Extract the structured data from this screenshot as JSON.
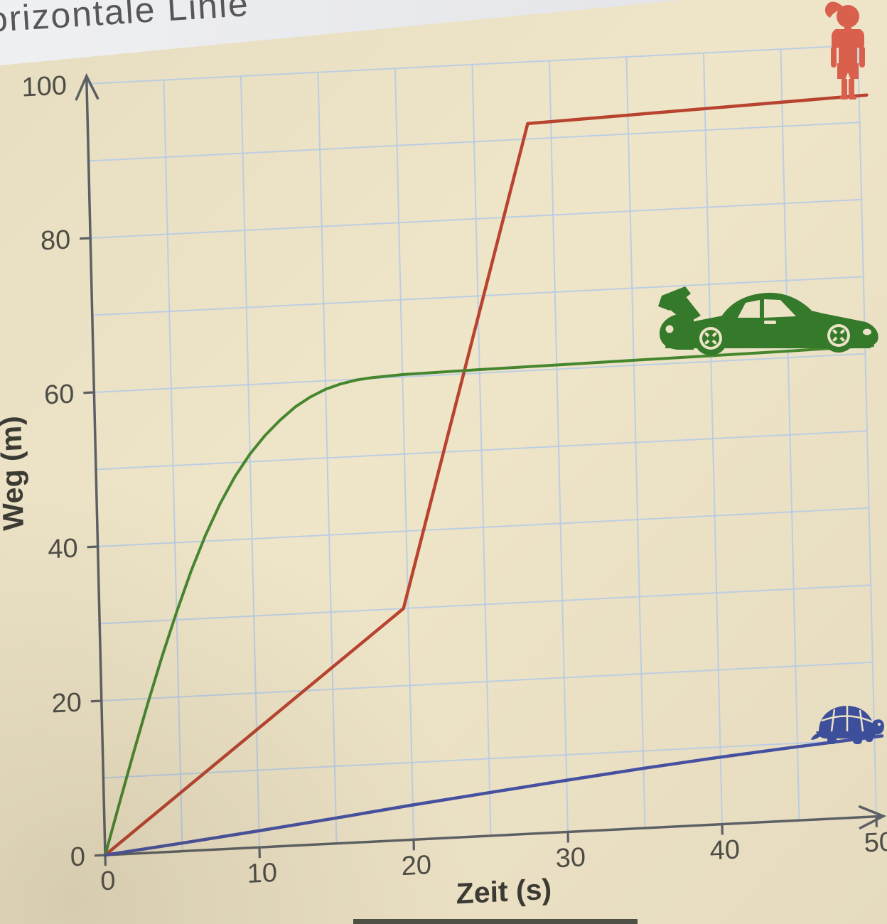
{
  "page": {
    "top_partial_text": "orizontale Linie",
    "paper_color": "#ece2c6",
    "top_band_color": "#e9eaec"
  },
  "chart_data": {
    "type": "line",
    "title": "",
    "xlabel": "Zeit (s)",
    "ylabel": "Weg (m)",
    "xlim": [
      0,
      50
    ],
    "ylim": [
      0,
      100
    ],
    "x_ticks": [
      0,
      10,
      20,
      30,
      40,
      50
    ],
    "y_ticks": [
      0,
      20,
      40,
      60,
      80,
      100
    ],
    "x_grid_step": 5,
    "y_grid_step": 10,
    "grid": true,
    "grid_color": "#b4cbe7",
    "axis_color": "#5c6064",
    "legend_position": "none",
    "series": [
      {
        "name": "runner-girl",
        "icon": "girl-runner-icon",
        "color": "#b8432f",
        "stroke_width": 4.5,
        "points": [
          [
            0,
            0
          ],
          [
            19.7,
            30
          ],
          [
            28.5,
            92
          ],
          [
            50.5,
            93.5
          ]
        ]
      },
      {
        "name": "sports-car",
        "icon": "sports-car-icon",
        "color": "#45862f",
        "stroke_width": 4,
        "points": [
          [
            0,
            0
          ],
          [
            1,
            6.6
          ],
          [
            2,
            13.1
          ],
          [
            3,
            19.4
          ],
          [
            4,
            25.4
          ],
          [
            5,
            31
          ],
          [
            6,
            36.2
          ],
          [
            7,
            40.8
          ],
          [
            8,
            44.8
          ],
          [
            9,
            48.2
          ],
          [
            10,
            51
          ],
          [
            11,
            53.3
          ],
          [
            12,
            55.2
          ],
          [
            13,
            56.8
          ],
          [
            14,
            58
          ],
          [
            15,
            58.9
          ],
          [
            16,
            59.5
          ],
          [
            17,
            59.9
          ],
          [
            18,
            60.1
          ],
          [
            20,
            60.3
          ],
          [
            25,
            60.45
          ],
          [
            30,
            60.55
          ],
          [
            35,
            60.65
          ],
          [
            40,
            60.75
          ],
          [
            45,
            60.85
          ],
          [
            50.5,
            61
          ]
        ]
      },
      {
        "name": "turtle",
        "icon": "turtle-icon",
        "color": "#4550a0",
        "stroke_width": 4.5,
        "points": [
          [
            0,
            0
          ],
          [
            5,
            1.05
          ],
          [
            10,
            2.15
          ],
          [
            15,
            3.3
          ],
          [
            20,
            4.5
          ],
          [
            25,
            5.6
          ],
          [
            30,
            6.7
          ],
          [
            35,
            7.75
          ],
          [
            40,
            8.7
          ],
          [
            45,
            9.55
          ],
          [
            50.5,
            10.4
          ]
        ]
      }
    ]
  },
  "icons": {
    "girl_color": "#d9604c",
    "car_color": "#35792a",
    "turtle_color": "#3d4e9a",
    "cutout_color": "#ece2c6"
  }
}
